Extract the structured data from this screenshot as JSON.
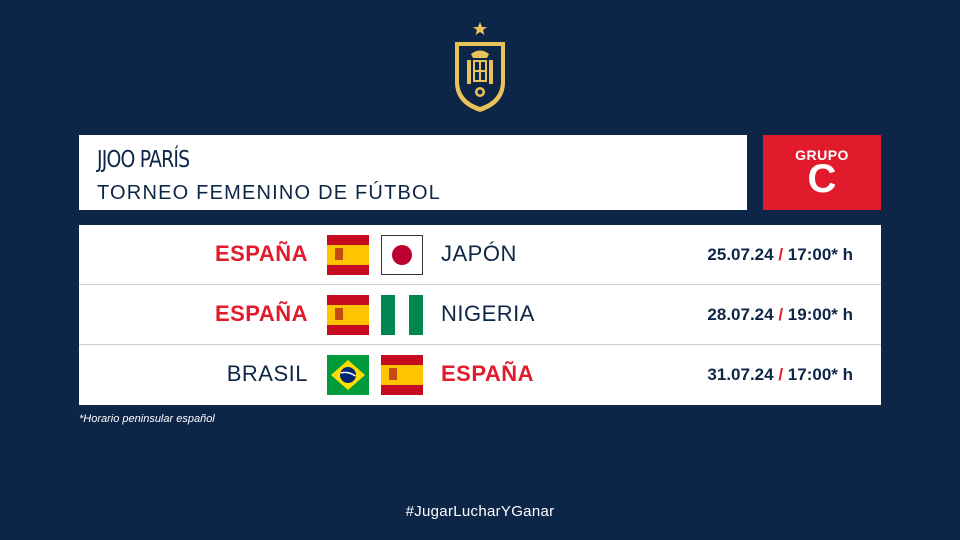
{
  "header": {
    "title": "JJOO PARÍS",
    "subtitle": "TORNEO FEMENINO DE FÚTBOL"
  },
  "group": {
    "label": "GRUPO",
    "letter": "C"
  },
  "matches": [
    {
      "home": "ESPAÑA",
      "home_flag": "spain-flag",
      "away": "JAPÓN",
      "away_flag": "japan-flag",
      "date": "25.07.24",
      "sep": "/",
      "time": "17:00* h",
      "highlight": "home"
    },
    {
      "home": "ESPAÑA",
      "home_flag": "spain-flag",
      "away": "NIGERIA",
      "away_flag": "nigeria-flag",
      "date": "28.07.24",
      "sep": "/",
      "time": "19:00* h",
      "highlight": "home"
    },
    {
      "home": "BRASIL",
      "home_flag": "brazil-flag",
      "away": "ESPAÑA",
      "away_flag": "spain-flag",
      "date": "31.07.24",
      "sep": "/",
      "time": "17:00* h",
      "highlight": "away"
    }
  ],
  "footnote": "*Horario peninsular español",
  "hashtag": "#JugarLucharYGanar",
  "colors": {
    "background": "#0d2547",
    "accent": "#e11b2c",
    "crest_gold": "#e9c25a"
  }
}
